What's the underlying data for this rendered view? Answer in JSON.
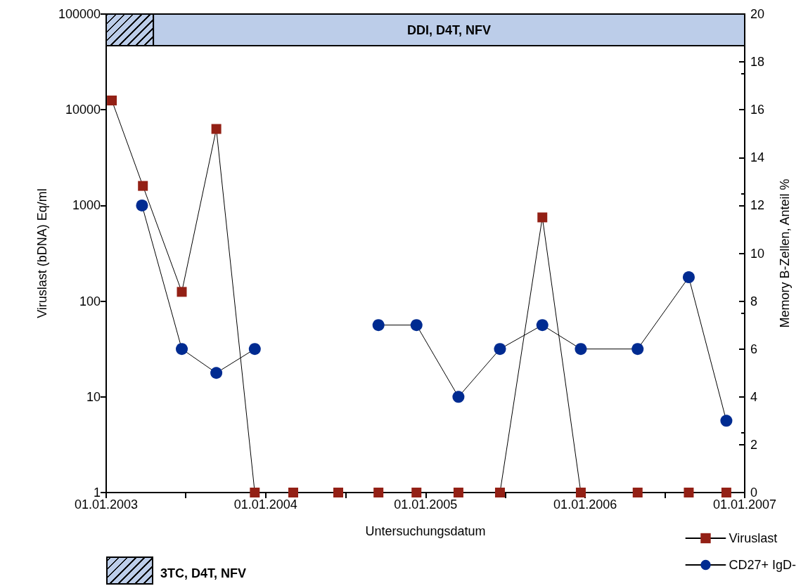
{
  "chart_data": {
    "type": "line",
    "xlabel": "Untersuchungsdatum",
    "ylabel": "Viruslast (bDNA) Eq/ml",
    "y2label": "Memory B-Zellen, Anteil %",
    "xlim": [
      "2003-01-01",
      "2007-01-01"
    ],
    "xticks": [
      {
        "value": "2003-01-01",
        "label": "01.01.2003"
      },
      {
        "value": "2003-07-02",
        "label": null
      },
      {
        "value": "2004-01-01",
        "label": "01.01.2004"
      },
      {
        "value": "2004-07-02",
        "label": null
      },
      {
        "value": "2005-01-01",
        "label": "01.01.2005"
      },
      {
        "value": "2005-07-02",
        "label": null
      },
      {
        "value": "2006-01-01",
        "label": "01.01.2006"
      },
      {
        "value": "2006-07-02",
        "label": null
      },
      {
        "value": "2007-01-01",
        "label": "01.01.2007"
      }
    ],
    "log": "y",
    "ylim": [
      1,
      100000
    ],
    "yticks": [
      1,
      10,
      100,
      1000,
      10000,
      100000
    ],
    "y2lim": [
      0,
      20
    ],
    "y2ticks": [
      0,
      2,
      4,
      6,
      8,
      10,
      12,
      14,
      16,
      18,
      20
    ],
    "grid": false,
    "legend": "bottom right",
    "line_style": "solid",
    "bands": [
      {
        "axis": "x",
        "from": "2003-01-01",
        "to": "2003-04-19",
        "label": "3TC, D4T, NFV",
        "color": "#bccde9"
      },
      {
        "axis": "x",
        "from": "2003-04-19",
        "to": "2007-01-01",
        "label": "DDI, D4T, NFV",
        "color": "#bccde9"
      }
    ],
    "series": [
      {
        "name": "Viruslast",
        "color": "#932015",
        "marker": "square",
        "x": [
          "2003-01-14",
          "2003-03-26",
          "2003-06-23",
          "2003-09-10",
          "2003-12-07",
          "2004-03-04",
          "2004-06-15",
          "2004-09-15",
          "2004-12-11",
          "2005-03-17",
          "2005-06-20",
          "2005-09-25",
          "2005-12-22",
          "2006-05-01",
          "2006-08-26",
          "2006-11-20"
        ],
        "values": [
          12500,
          1600,
          125,
          6300,
          1,
          1,
          1,
          1,
          1,
          1,
          1,
          750,
          1,
          1,
          1,
          1
        ]
      },
      {
        "name": "CD27+ IgD-",
        "color": "#002b91",
        "marker": "circle",
        "axis": "y2",
        "x": [
          "2003-03-24",
          "2003-06-23",
          "2003-09-10",
          "2003-12-07",
          "2004-03-04",
          "2004-09-15",
          "2004-12-11",
          "2005-03-17",
          "2005-06-20",
          "2005-09-25",
          "2005-12-22",
          "2006-05-01",
          "2006-08-26",
          "2006-11-20"
        ],
        "values": [
          12,
          6,
          5,
          6,
          null,
          7,
          7,
          4,
          6,
          7,
          6,
          6,
          9,
          3
        ]
      }
    ]
  }
}
